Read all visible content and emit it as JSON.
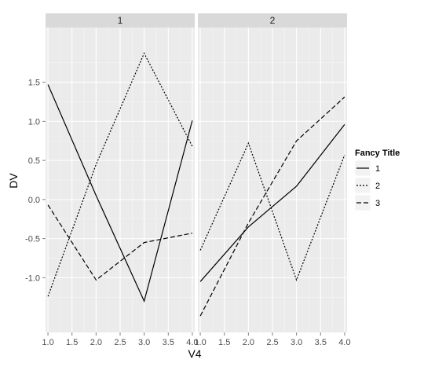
{
  "chart_data": {
    "type": "line",
    "xlabel": "V4",
    "ylabel": "DV",
    "xlim": [
      0.95,
      4.05
    ],
    "ylim": [
      -1.7,
      2.2
    ],
    "x_ticks": [
      "1.0",
      "1.5",
      "2.0",
      "2.5",
      "3.0",
      "3.5",
      "4.0"
    ],
    "y_ticks": [
      "-1.0",
      "-0.5",
      "0.0",
      "0.5",
      "1.0",
      "1.5"
    ],
    "grid": true,
    "legend": {
      "title": "Fancy Title",
      "position": "right",
      "entries": [
        "1",
        "2",
        "3"
      ]
    },
    "x": [
      1,
      2,
      3,
      4
    ],
    "panels": [
      {
        "label": "1",
        "series": [
          {
            "name": "1",
            "linetype": "solid",
            "values": [
              1.47,
              0.05,
              -1.3,
              1.01
            ]
          },
          {
            "name": "2",
            "linetype": "dotted",
            "values": [
              -1.24,
              0.45,
              1.87,
              0.68
            ]
          },
          {
            "name": "3",
            "linetype": "dashed",
            "values": [
              -0.07,
              -1.03,
              -0.55,
              -0.43
            ]
          }
        ]
      },
      {
        "label": "2",
        "series": [
          {
            "name": "1",
            "linetype": "solid",
            "values": [
              -1.05,
              -0.35,
              0.17,
              0.96
            ]
          },
          {
            "name": "2",
            "linetype": "dotted",
            "values": [
              -0.65,
              0.72,
              -1.03,
              0.57
            ]
          },
          {
            "name": "3",
            "linetype": "dashed",
            "values": [
              -1.49,
              -0.3,
              0.75,
              1.31
            ]
          }
        ]
      }
    ]
  },
  "colors": {
    "panel_background": "#ebebeb",
    "strip_background": "#d9d9d9",
    "grid_major": "#ffffff",
    "grid_minor": "#f5f5f5",
    "line": "#000000"
  }
}
